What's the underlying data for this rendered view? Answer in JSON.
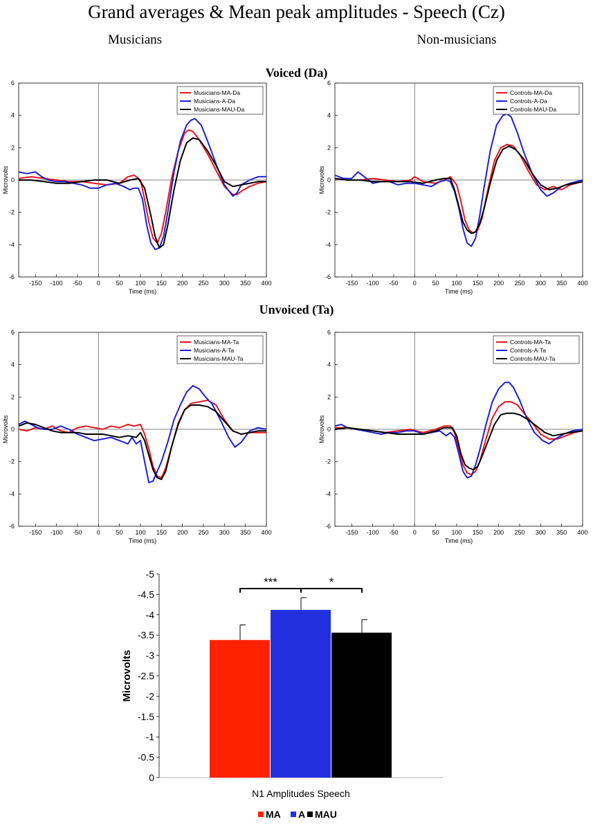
{
  "page": {
    "title": "Grand averages & Mean peak amplitudes - Speech (Cz)",
    "col_left": "Musicians",
    "col_right": "Non-musicians",
    "row_voiced": "Voiced (Da)",
    "row_unvoiced": "Unvoiced (Ta)"
  },
  "chart_data": [
    {
      "id": "musicians-da",
      "type": "line",
      "xlabel": "Time (ms)",
      "ylabel": "Microvolts",
      "xlim": [
        -190,
        400
      ],
      "ylim": [
        -6,
        6
      ],
      "xticks": [
        -150,
        -100,
        -50,
        0,
        50,
        100,
        150,
        200,
        250,
        300,
        350,
        400
      ],
      "yticks": [
        -6,
        -4,
        -2,
        0,
        2,
        4,
        6
      ],
      "legend": "top-right",
      "series": [
        {
          "name": "Musicians-MA-Da",
          "color": "#e8141b",
          "x": [
            -190,
            -160,
            -130,
            -100,
            -70,
            -40,
            -10,
            20,
            50,
            70,
            85,
            100,
            110,
            120,
            130,
            140,
            150,
            160,
            175,
            190,
            205,
            215,
            225,
            240,
            260,
            280,
            300,
            320,
            330,
            340,
            360,
            380,
            400
          ],
          "y": [
            0.1,
            0.2,
            0.1,
            0.0,
            -0.1,
            -0.1,
            -0.2,
            -0.3,
            -0.2,
            0.2,
            0.3,
            0.0,
            -1.2,
            -2.6,
            -3.6,
            -3.9,
            -3.3,
            -2.0,
            0.2,
            1.8,
            2.9,
            3.1,
            3.0,
            2.5,
            1.6,
            0.6,
            -0.4,
            -0.9,
            -0.9,
            -0.7,
            -0.4,
            -0.2,
            -0.1
          ]
        },
        {
          "name": "Musicians-A-Da",
          "color": "#1d1fd6",
          "x": [
            -190,
            -170,
            -150,
            -135,
            -120,
            -100,
            -80,
            -60,
            -40,
            -20,
            0,
            20,
            40,
            60,
            75,
            85,
            95,
            105,
            115,
            125,
            135,
            145,
            155,
            165,
            180,
            195,
            210,
            220,
            230,
            245,
            260,
            280,
            300,
            320,
            330,
            340,
            360,
            380,
            400
          ],
          "y": [
            0.5,
            0.4,
            0.5,
            0.2,
            0.0,
            -0.1,
            -0.1,
            -0.2,
            -0.3,
            -0.5,
            -0.5,
            -0.3,
            -0.2,
            -0.4,
            -0.6,
            -0.5,
            -0.5,
            -1.2,
            -2.8,
            -3.9,
            -4.3,
            -4.2,
            -3.5,
            -2.0,
            0.5,
            2.4,
            3.4,
            3.7,
            3.8,
            3.4,
            2.4,
            1.0,
            -0.3,
            -1.0,
            -0.8,
            -0.3,
            0.0,
            0.2,
            0.2
          ]
        },
        {
          "name": "Musicians-MAU-Da",
          "color": "#000000",
          "x": [
            -190,
            -160,
            -130,
            -100,
            -70,
            -40,
            -10,
            20,
            50,
            75,
            95,
            110,
            125,
            135,
            145,
            155,
            165,
            180,
            195,
            210,
            225,
            240,
            260,
            280,
            300,
            320,
            340,
            360,
            380,
            400
          ],
          "y": [
            0.0,
            0.0,
            -0.1,
            -0.2,
            -0.2,
            -0.1,
            0.0,
            0.0,
            -0.2,
            0.0,
            0.1,
            -0.5,
            -2.2,
            -3.5,
            -4.2,
            -4.0,
            -2.8,
            -0.6,
            1.2,
            2.3,
            2.6,
            2.5,
            1.8,
            0.9,
            -0.1,
            -0.4,
            -0.3,
            -0.2,
            -0.1,
            -0.1
          ]
        }
      ]
    },
    {
      "id": "controls-da",
      "type": "line",
      "xlabel": "Time (ms)",
      "ylabel": "Microvolts",
      "xlim": [
        -190,
        400
      ],
      "ylim": [
        -6,
        6
      ],
      "xticks": [
        -150,
        -100,
        -50,
        0,
        50,
        100,
        150,
        200,
        250,
        300,
        350,
        400
      ],
      "yticks": [
        -6,
        -4,
        -2,
        0,
        2,
        4,
        6
      ],
      "legend": "top-right",
      "series": [
        {
          "name": "Controls-MA-Da",
          "color": "#e8141b",
          "x": [
            -190,
            -160,
            -130,
            -100,
            -70,
            -40,
            -10,
            0,
            20,
            50,
            70,
            85,
            100,
            110,
            120,
            130,
            140,
            150,
            160,
            175,
            190,
            205,
            220,
            235,
            250,
            270,
            290,
            310,
            330,
            350,
            370,
            400
          ],
          "y": [
            0.1,
            0.0,
            0.0,
            0.1,
            0.0,
            -0.1,
            0.0,
            0.2,
            -0.1,
            -0.2,
            0.0,
            0.2,
            -0.3,
            -1.3,
            -2.5,
            -3.1,
            -3.3,
            -3.1,
            -2.4,
            -0.5,
            1.2,
            2.0,
            2.2,
            2.1,
            1.6,
            0.6,
            -0.3,
            -0.6,
            -0.4,
            -0.6,
            -0.3,
            -0.1
          ]
        },
        {
          "name": "Controls-A-Da",
          "color": "#1d1fd6",
          "x": [
            -190,
            -170,
            -150,
            -135,
            -120,
            -100,
            -80,
            -60,
            -40,
            -20,
            0,
            20,
            40,
            60,
            75,
            85,
            95,
            105,
            115,
            125,
            135,
            145,
            155,
            165,
            180,
            195,
            210,
            220,
            230,
            245,
            260,
            280,
            300,
            315,
            330,
            350,
            370,
            400
          ],
          "y": [
            0.3,
            0.1,
            0.1,
            0.5,
            0.2,
            -0.2,
            -0.1,
            -0.1,
            -0.3,
            -0.2,
            -0.2,
            -0.3,
            -0.4,
            -0.1,
            0.0,
            -0.1,
            -0.7,
            -1.7,
            -3.0,
            -3.9,
            -4.1,
            -3.6,
            -2.2,
            -0.5,
            1.8,
            3.4,
            4.0,
            4.1,
            3.9,
            2.9,
            1.7,
            0.4,
            -0.6,
            -1.0,
            -0.8,
            -0.4,
            -0.2,
            0.0
          ]
        },
        {
          "name": "Controls-MAU-Da",
          "color": "#000000",
          "x": [
            -190,
            -160,
            -130,
            -100,
            -70,
            -40,
            -10,
            20,
            50,
            70,
            85,
            95,
            105,
            115,
            125,
            135,
            145,
            155,
            165,
            180,
            195,
            210,
            225,
            240,
            260,
            280,
            300,
            320,
            340,
            360,
            380,
            400
          ],
          "y": [
            0.1,
            0.0,
            0.0,
            -0.1,
            -0.1,
            -0.1,
            -0.1,
            -0.2,
            0.0,
            0.1,
            0.1,
            -0.6,
            -1.6,
            -2.6,
            -3.1,
            -3.3,
            -3.2,
            -2.7,
            -1.8,
            -0.2,
            1.2,
            1.9,
            2.1,
            1.9,
            1.3,
            0.4,
            -0.3,
            -0.6,
            -0.5,
            -0.3,
            -0.2,
            -0.1
          ]
        }
      ]
    },
    {
      "id": "musicians-ta",
      "type": "line",
      "xlabel": "Time (ms)",
      "ylabel": "Microvolts",
      "xlim": [
        -190,
        400
      ],
      "ylim": [
        -6,
        6
      ],
      "xticks": [
        -150,
        -100,
        -50,
        0,
        50,
        100,
        150,
        200,
        250,
        300,
        350,
        400
      ],
      "yticks": [
        -6,
        -4,
        -2,
        0,
        2,
        4,
        6
      ],
      "legend": "top-right",
      "series": [
        {
          "name": "Musicians-MA-Ta",
          "color": "#e8141b",
          "x": [
            -190,
            -170,
            -150,
            -130,
            -110,
            -90,
            -70,
            -50,
            -30,
            -10,
            10,
            30,
            50,
            70,
            85,
            100,
            110,
            120,
            130,
            140,
            150,
            160,
            175,
            190,
            205,
            220,
            240,
            260,
            280,
            300,
            320,
            340,
            360,
            380,
            400
          ],
          "y": [
            0.0,
            -0.1,
            0.1,
            0.0,
            0.2,
            -0.1,
            -0.2,
            0.1,
            0.2,
            0.1,
            0.0,
            0.2,
            0.1,
            0.3,
            0.2,
            0.3,
            -0.3,
            -1.2,
            -2.3,
            -2.9,
            -3.0,
            -2.4,
            -1.0,
            0.4,
            1.2,
            1.6,
            1.7,
            1.8,
            1.5,
            0.6,
            -0.1,
            -0.3,
            -0.2,
            -0.2,
            -0.2
          ]
        },
        {
          "name": "Musicians-A-Ta",
          "color": "#1d1fd6",
          "x": [
            -190,
            -175,
            -160,
            -145,
            -130,
            -110,
            -90,
            -70,
            -50,
            -30,
            -10,
            10,
            30,
            50,
            70,
            80,
            90,
            100,
            110,
            120,
            130,
            140,
            150,
            165,
            180,
            195,
            210,
            225,
            240,
            255,
            270,
            290,
            310,
            325,
            340,
            360,
            380,
            400
          ],
          "y": [
            0.3,
            0.5,
            0.3,
            0.1,
            0.0,
            0.0,
            0.2,
            0.0,
            -0.3,
            -0.5,
            -0.7,
            -0.6,
            -0.5,
            -0.7,
            -0.9,
            -0.5,
            -0.9,
            -0.7,
            -2.0,
            -3.3,
            -3.2,
            -2.6,
            -2.0,
            -0.8,
            0.6,
            1.5,
            2.3,
            2.7,
            2.5,
            2.0,
            1.6,
            0.6,
            -0.5,
            -1.1,
            -0.8,
            -0.1,
            0.1,
            0.0
          ]
        },
        {
          "name": "Musicians-MAU-Ta",
          "color": "#000000",
          "x": [
            -190,
            -170,
            -150,
            -130,
            -110,
            -90,
            -70,
            -50,
            -30,
            -10,
            10,
            30,
            50,
            70,
            90,
            100,
            110,
            120,
            130,
            140,
            150,
            160,
            175,
            190,
            205,
            220,
            240,
            260,
            280,
            300,
            320,
            340,
            360,
            380,
            400
          ],
          "y": [
            0.2,
            0.4,
            0.3,
            0.1,
            -0.1,
            -0.2,
            -0.2,
            -0.2,
            -0.3,
            -0.3,
            -0.3,
            -0.4,
            -0.5,
            -0.4,
            -0.5,
            -0.2,
            -0.7,
            -1.6,
            -2.5,
            -3.0,
            -3.1,
            -2.6,
            -1.0,
            0.3,
            1.2,
            1.5,
            1.5,
            1.4,
            1.1,
            0.5,
            -0.1,
            -0.3,
            -0.2,
            -0.1,
            -0.1
          ]
        }
      ]
    },
    {
      "id": "controls-ta",
      "type": "line",
      "xlabel": "Time (ms)",
      "ylabel": "Microvolts",
      "xlim": [
        -190,
        400
      ],
      "ylim": [
        -6,
        6
      ],
      "xticks": [
        -150,
        -100,
        -50,
        0,
        50,
        100,
        150,
        200,
        250,
        300,
        350,
        400
      ],
      "yticks": [
        -6,
        -4,
        -2,
        0,
        2,
        4,
        6
      ],
      "legend": "top-right",
      "series": [
        {
          "name": "Controls-MA-Ta",
          "color": "#e8141b",
          "x": [
            -190,
            -160,
            -130,
            -100,
            -70,
            -40,
            -10,
            20,
            50,
            70,
            85,
            95,
            105,
            115,
            125,
            135,
            145,
            155,
            170,
            185,
            200,
            215,
            230,
            245,
            260,
            280,
            300,
            320,
            340,
            360,
            380,
            400
          ],
          "y": [
            0.1,
            0.1,
            0.0,
            -0.1,
            -0.2,
            -0.1,
            0.0,
            -0.2,
            0.0,
            0.2,
            0.2,
            -0.2,
            -1.2,
            -2.2,
            -2.7,
            -2.8,
            -2.6,
            -2.0,
            -0.6,
            0.7,
            1.4,
            1.7,
            1.7,
            1.5,
            1.0,
            0.4,
            -0.3,
            -0.6,
            -0.6,
            -0.4,
            -0.2,
            -0.1
          ]
        },
        {
          "name": "Controls-A-Ta",
          "color": "#1d1fd6",
          "x": [
            -190,
            -175,
            -160,
            -140,
            -120,
            -100,
            -80,
            -60,
            -40,
            -20,
            0,
            20,
            40,
            60,
            75,
            85,
            95,
            105,
            115,
            125,
            135,
            145,
            155,
            170,
            185,
            200,
            215,
            225,
            235,
            250,
            265,
            285,
            305,
            320,
            335,
            355,
            375,
            400
          ],
          "y": [
            0.2,
            0.3,
            0.1,
            0.0,
            -0.1,
            -0.2,
            -0.3,
            -0.2,
            -0.2,
            -0.1,
            -0.1,
            -0.3,
            -0.2,
            -0.1,
            -0.4,
            -0.2,
            -0.5,
            -1.5,
            -2.6,
            -3.0,
            -2.9,
            -2.2,
            -1.3,
            0.3,
            1.7,
            2.5,
            2.9,
            2.9,
            2.6,
            1.8,
            0.8,
            -0.2,
            -0.7,
            -0.9,
            -0.6,
            -0.3,
            -0.1,
            0.0
          ]
        },
        {
          "name": "Controls-MAU-Ta",
          "color": "#000000",
          "x": [
            -190,
            -160,
            -130,
            -100,
            -70,
            -40,
            -10,
            20,
            50,
            70,
            90,
            100,
            110,
            120,
            130,
            140,
            150,
            160,
            175,
            190,
            205,
            220,
            235,
            250,
            270,
            290,
            310,
            330,
            350,
            370,
            400
          ],
          "y": [
            0.0,
            0.1,
            0.0,
            -0.1,
            -0.2,
            -0.3,
            -0.3,
            -0.3,
            -0.1,
            0.1,
            0.1,
            -0.4,
            -1.5,
            -2.2,
            -2.4,
            -2.5,
            -2.3,
            -1.7,
            -0.7,
            0.3,
            0.9,
            1.0,
            1.0,
            0.9,
            0.6,
            0.2,
            -0.2,
            -0.4,
            -0.3,
            -0.2,
            -0.1
          ]
        }
      ]
    },
    {
      "id": "n1-bar",
      "type": "bar",
      "xlabel": "N1 Amplitudes Speech",
      "ylabel": "Microvolts",
      "ylim": [
        0,
        -5
      ],
      "yticks": [
        0,
        -0.5,
        -1,
        -1.5,
        -2,
        -2.5,
        -3,
        -3.5,
        -4,
        -4.5,
        -5
      ],
      "categories": [
        "MA",
        "A",
        "MAU"
      ],
      "values": [
        -3.38,
        -4.12,
        -3.56
      ],
      "errors": [
        0.37,
        0.3,
        0.32
      ],
      "colors": [
        "#ff2200",
        "#2330e0",
        "#000000"
      ],
      "legend": "bottom",
      "significance": [
        {
          "pair": [
            "MA",
            "A"
          ],
          "label": "***"
        },
        {
          "pair": [
            "A",
            "MAU"
          ],
          "label": "*"
        }
      ]
    }
  ]
}
